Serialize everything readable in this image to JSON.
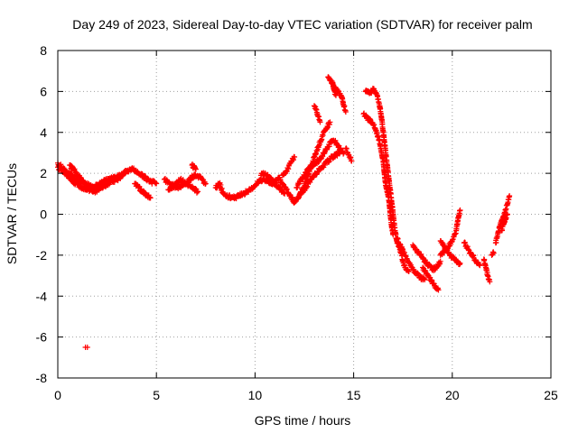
{
  "chart_data": {
    "type": "scatter",
    "title": "Day 249 of 2023, Sidereal Day-to-day VTEC variation (SDTVAR) for receiver palm",
    "xlabel": "GPS time / hours",
    "ylabel": "SDTVAR / TECUs",
    "xlim": [
      0,
      25
    ],
    "ylim": [
      -8,
      8
    ],
    "x_ticks": [
      0,
      5,
      10,
      15,
      20,
      25
    ],
    "y_ticks": [
      -8,
      -6,
      -4,
      -2,
      0,
      2,
      4,
      6,
      8
    ],
    "grid": true,
    "marker": "plus",
    "color": "#ff0000",
    "series": [
      {
        "name": "SDTVAR",
        "segments": [
          [
            [
              0.0,
              2.5
            ],
            [
              0.2,
              2.3
            ],
            [
              0.4,
              2.1
            ],
            [
              0.6,
              2.0
            ],
            [
              0.8,
              1.8
            ],
            [
              1.0,
              1.7
            ],
            [
              1.2,
              1.6
            ],
            [
              1.4,
              1.5
            ],
            [
              1.6,
              1.4
            ],
            [
              1.8,
              1.3
            ],
            [
              2.0,
              1.4
            ],
            [
              2.3,
              1.6
            ],
            [
              2.6,
              1.7
            ],
            [
              2.9,
              1.8
            ],
            [
              3.2,
              1.9
            ],
            [
              3.5,
              2.1
            ],
            [
              3.8,
              2.2
            ],
            [
              4.1,
              2.0
            ],
            [
              4.4,
              1.8
            ],
            [
              4.7,
              1.6
            ],
            [
              5.0,
              1.5
            ]
          ],
          [
            [
              0.0,
              2.3
            ],
            [
              0.3,
              2.1
            ],
            [
              0.6,
              1.8
            ],
            [
              0.9,
              1.5
            ],
            [
              1.2,
              1.3
            ],
            [
              1.5,
              1.2
            ],
            [
              1.8,
              1.1
            ],
            [
              2.1,
              1.2
            ],
            [
              2.4,
              1.4
            ],
            [
              2.7,
              1.6
            ],
            [
              3.0,
              1.7
            ],
            [
              3.3,
              1.9
            ]
          ],
          [
            [
              0.6,
              2.4
            ],
            [
              0.8,
              2.2
            ],
            [
              1.0,
              1.9
            ],
            [
              1.2,
              1.7
            ]
          ],
          [
            [
              3.9,
              1.5
            ],
            [
              4.1,
              1.3
            ],
            [
              4.3,
              1.1
            ],
            [
              4.5,
              0.9
            ],
            [
              4.7,
              0.8
            ]
          ],
          [
            [
              5.4,
              1.7
            ],
            [
              5.7,
              1.5
            ],
            [
              6.0,
              1.3
            ],
            [
              6.3,
              1.4
            ],
            [
              6.6,
              1.6
            ],
            [
              6.9,
              1.9
            ],
            [
              7.2,
              1.8
            ],
            [
              7.5,
              1.5
            ]
          ],
          [
            [
              5.6,
              1.2
            ],
            [
              5.9,
              1.4
            ],
            [
              6.2,
              1.7
            ],
            [
              6.5,
              1.5
            ],
            [
              6.8,
              1.3
            ],
            [
              7.1,
              1.1
            ]
          ],
          [
            [
              6.8,
              2.4
            ],
            [
              7.0,
              2.2
            ]
          ],
          [
            [
              8.0,
              1.3
            ],
            [
              8.2,
              1.5
            ],
            [
              8.4,
              1.0
            ],
            [
              8.6,
              0.9
            ],
            [
              8.8,
              0.8
            ],
            [
              9.0,
              0.8
            ],
            [
              9.2,
              0.9
            ],
            [
              9.4,
              1.0
            ],
            [
              9.6,
              1.1
            ],
            [
              9.8,
              1.2
            ],
            [
              10.0,
              1.4
            ],
            [
              10.2,
              1.6
            ],
            [
              10.4,
              1.7
            ],
            [
              10.6,
              1.6
            ],
            [
              10.8,
              1.5
            ],
            [
              11.0,
              1.6
            ],
            [
              11.2,
              1.8
            ],
            [
              11.4,
              1.5
            ],
            [
              11.6,
              1.2
            ],
            [
              11.8,
              0.9
            ],
            [
              12.0,
              0.6
            ],
            [
              12.2,
              0.8
            ],
            [
              12.4,
              1.2
            ],
            [
              12.6,
              1.7
            ],
            [
              12.8,
              2.2
            ],
            [
              13.0,
              2.8
            ],
            [
              13.2,
              3.3
            ],
            [
              13.4,
              3.8
            ],
            [
              13.6,
              4.2
            ],
            [
              13.8,
              4.5
            ]
          ],
          [
            [
              10.3,
              1.9
            ],
            [
              10.5,
              2.0
            ],
            [
              10.7,
              1.8
            ],
            [
              10.9,
              1.6
            ],
            [
              11.1,
              1.4
            ],
            [
              11.3,
              1.2
            ],
            [
              11.5,
              1.0
            ]
          ],
          [
            [
              11.4,
              1.9
            ],
            [
              11.6,
              2.1
            ],
            [
              11.8,
              2.5
            ],
            [
              12.0,
              2.8
            ]
          ],
          [
            [
              12.1,
              1.3
            ],
            [
              12.3,
              1.6
            ],
            [
              12.5,
              1.9
            ],
            [
              12.7,
              2.2
            ],
            [
              12.9,
              2.4
            ],
            [
              13.1,
              2.5
            ],
            [
              13.3,
              2.7
            ],
            [
              13.5,
              3.0
            ],
            [
              13.7,
              3.3
            ],
            [
              13.9,
              3.6
            ],
            [
              14.1,
              3.5
            ],
            [
              14.3,
              3.2
            ],
            [
              14.5,
              3.0
            ]
          ],
          [
            [
              12.3,
              1.0
            ],
            [
              12.5,
              1.2
            ],
            [
              12.7,
              1.5
            ],
            [
              12.9,
              1.8
            ],
            [
              13.1,
              2.0
            ],
            [
              13.3,
              2.2
            ],
            [
              13.5,
              2.4
            ],
            [
              13.7,
              2.6
            ],
            [
              13.9,
              2.8
            ],
            [
              14.1,
              2.9
            ],
            [
              14.3,
              3.0
            ]
          ],
          [
            [
              13.0,
              5.3
            ],
            [
              13.1,
              5.1
            ],
            [
              13.2,
              4.8
            ],
            [
              13.3,
              4.5
            ]
          ],
          [
            [
              13.7,
              6.7
            ],
            [
              13.8,
              6.6
            ],
            [
              13.9,
              6.4
            ],
            [
              14.0,
              6.2
            ],
            [
              14.2,
              6.0
            ],
            [
              14.4,
              5.7
            ],
            [
              14.5,
              5.3
            ],
            [
              14.6,
              5.0
            ]
          ],
          [
            [
              13.9,
              6.5
            ],
            [
              14.0,
              6.1
            ],
            [
              14.1,
              5.8
            ]
          ],
          [
            [
              14.6,
              3.2
            ],
            [
              14.7,
              3.0
            ],
            [
              14.8,
              2.8
            ],
            [
              14.9,
              2.6
            ]
          ],
          [
            [
              15.6,
              6.0
            ],
            [
              15.8,
              5.9
            ],
            [
              16.0,
              6.1
            ],
            [
              16.2,
              5.8
            ],
            [
              16.3,
              5.4
            ],
            [
              16.4,
              4.8
            ],
            [
              16.5,
              4.0
            ],
            [
              16.6,
              3.2
            ],
            [
              16.7,
              2.4
            ],
            [
              16.8,
              1.6
            ],
            [
              16.9,
              0.8
            ],
            [
              17.0,
              0.0
            ],
            [
              17.1,
              -0.8
            ],
            [
              17.2,
              -1.4
            ],
            [
              17.4,
              -1.9
            ],
            [
              17.5,
              -2.3
            ],
            [
              17.6,
              -2.6
            ],
            [
              17.8,
              -2.8
            ]
          ],
          [
            [
              15.5,
              4.9
            ],
            [
              15.7,
              4.7
            ],
            [
              15.9,
              4.5
            ],
            [
              16.1,
              4.2
            ],
            [
              16.3,
              3.6
            ],
            [
              16.5,
              2.6
            ],
            [
              16.6,
              1.6
            ],
            [
              16.8,
              0.6
            ],
            [
              16.9,
              -0.4
            ],
            [
              17.0,
              -1.0
            ]
          ],
          [
            [
              17.2,
              -1.2
            ],
            [
              17.4,
              -1.6
            ],
            [
              17.6,
              -2.0
            ],
            [
              17.8,
              -2.4
            ],
            [
              18.0,
              -2.7
            ],
            [
              18.2,
              -2.9
            ],
            [
              18.4,
              -3.1
            ],
            [
              18.6,
              -3.2
            ]
          ],
          [
            [
              18.0,
              -1.5
            ],
            [
              18.2,
              -1.8
            ],
            [
              18.4,
              -2.0
            ],
            [
              18.6,
              -2.3
            ],
            [
              18.8,
              -2.5
            ],
            [
              19.0,
              -2.7
            ],
            [
              19.2,
              -2.6
            ],
            [
              19.4,
              -2.3
            ]
          ],
          [
            [
              18.5,
              -2.6
            ],
            [
              18.7,
              -2.9
            ],
            [
              18.9,
              -3.2
            ],
            [
              19.1,
              -3.5
            ],
            [
              19.3,
              -3.7
            ]
          ],
          [
            [
              19.4,
              -1.3
            ],
            [
              19.6,
              -1.6
            ],
            [
              19.8,
              -1.9
            ],
            [
              20.0,
              -2.1
            ],
            [
              20.2,
              -2.3
            ],
            [
              20.4,
              -2.4
            ]
          ],
          [
            [
              19.4,
              -2.0
            ],
            [
              19.6,
              -1.8
            ],
            [
              19.8,
              -1.6
            ],
            [
              20.0,
              -1.3
            ],
            [
              20.2,
              -0.8
            ],
            [
              20.3,
              -0.2
            ],
            [
              20.4,
              0.2
            ]
          ],
          [
            [
              20.6,
              -1.4
            ],
            [
              20.8,
              -1.7
            ],
            [
              21.0,
              -2.0
            ],
            [
              21.2,
              -2.3
            ],
            [
              21.4,
              -2.5
            ]
          ],
          [
            [
              21.6,
              -2.2
            ],
            [
              21.7,
              -2.6
            ],
            [
              21.8,
              -3.0
            ],
            [
              21.9,
              -3.3
            ]
          ],
          [
            [
              22.0,
              -2.0
            ],
            [
              22.1,
              -1.9
            ]
          ],
          [
            [
              22.2,
              -1.4
            ],
            [
              22.3,
              -1.0
            ],
            [
              22.4,
              -0.6
            ],
            [
              22.5,
              -0.3
            ],
            [
              22.6,
              -0.1
            ],
            [
              22.7,
              0.2
            ],
            [
              22.8,
              0.5
            ],
            [
              22.9,
              0.9
            ]
          ],
          [
            [
              22.5,
              -0.8
            ],
            [
              22.6,
              -0.5
            ],
            [
              22.7,
              -0.2
            ],
            [
              22.8,
              0.0
            ]
          ]
        ],
        "isolated_points": [
          [
            1.4,
            -6.5
          ],
          [
            1.5,
            -6.5
          ]
        ]
      }
    ]
  }
}
